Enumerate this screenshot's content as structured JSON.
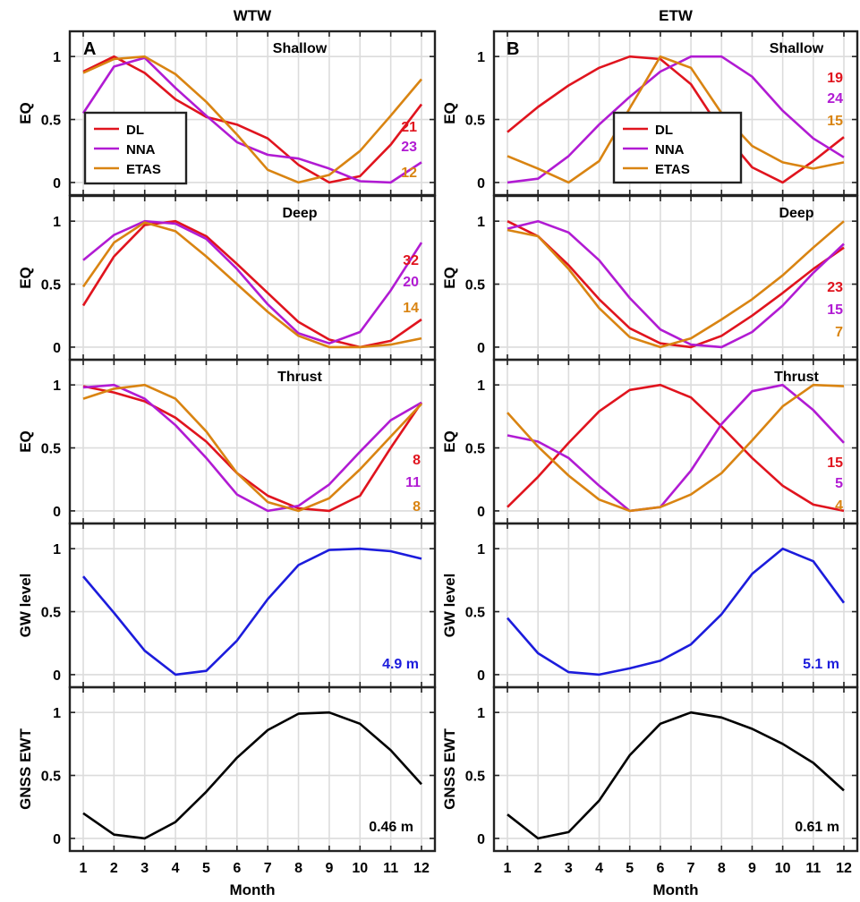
{
  "column_titles": [
    "WTW",
    "ETW"
  ],
  "panel_letters": [
    "A",
    "B"
  ],
  "colors": {
    "DL": "#e0141e",
    "NNA": "#b11bd3",
    "ETAS": "#d98412",
    "GW": "#1c1cdc",
    "GNSS": "#000000"
  },
  "legend": {
    "entries": [
      "DL",
      "NNA",
      "ETAS"
    ],
    "placement": [
      "lower-left",
      "lower-center"
    ]
  },
  "chart_data": [
    {
      "type": "line",
      "column": "WTW",
      "row": 0,
      "title": "Shallow",
      "ylabel": "EQ",
      "x": [
        1,
        2,
        3,
        4,
        5,
        6,
        7,
        8,
        9,
        10,
        11,
        12
      ],
      "xlim": [
        1,
        12
      ],
      "ylim": [
        -0.1,
        1.2
      ],
      "yticks": [
        0,
        0.5,
        1
      ],
      "ytick_labels": [
        "0",
        "0.5",
        "1"
      ],
      "grid": true,
      "series": [
        {
          "name": "DL",
          "values": [
            0.88,
            1.0,
            0.87,
            0.66,
            0.52,
            0.46,
            0.35,
            0.14,
            0.0,
            0.05,
            0.3,
            0.62
          ],
          "annotation": "21"
        },
        {
          "name": "NNA",
          "values": [
            0.55,
            0.92,
            0.99,
            0.75,
            0.53,
            0.32,
            0.22,
            0.19,
            0.11,
            0.01,
            0.0,
            0.16
          ],
          "annotation": "23"
        },
        {
          "name": "ETAS",
          "values": [
            0.87,
            0.98,
            1.0,
            0.86,
            0.64,
            0.38,
            0.1,
            0.0,
            0.06,
            0.25,
            0.53,
            0.82
          ],
          "annotation": "12"
        }
      ]
    },
    {
      "type": "line",
      "column": "WTW",
      "row": 1,
      "title": "Deep",
      "ylabel": "EQ",
      "x": [
        1,
        2,
        3,
        4,
        5,
        6,
        7,
        8,
        9,
        10,
        11,
        12
      ],
      "xlim": [
        1,
        12
      ],
      "ylim": [
        -0.1,
        1.2
      ],
      "yticks": [
        0,
        0.5,
        1
      ],
      "ytick_labels": [
        "0",
        "0.5",
        "1"
      ],
      "grid": true,
      "series": [
        {
          "name": "DL",
          "values": [
            0.33,
            0.72,
            0.97,
            1.0,
            0.88,
            0.66,
            0.43,
            0.2,
            0.06,
            0.0,
            0.05,
            0.22
          ],
          "annotation": "32"
        },
        {
          "name": "NNA",
          "values": [
            0.69,
            0.89,
            1.0,
            0.98,
            0.86,
            0.62,
            0.34,
            0.11,
            0.03,
            0.12,
            0.45,
            0.83
          ],
          "annotation": "20"
        },
        {
          "name": "ETAS",
          "values": [
            0.48,
            0.83,
            0.99,
            0.92,
            0.72,
            0.5,
            0.28,
            0.09,
            0.0,
            0.0,
            0.02,
            0.07
          ],
          "annotation": "14"
        }
      ]
    },
    {
      "type": "line",
      "column": "WTW",
      "row": 2,
      "title": "Thrust",
      "ylabel": "EQ",
      "x": [
        1,
        2,
        3,
        4,
        5,
        6,
        7,
        8,
        9,
        10,
        11,
        12
      ],
      "xlim": [
        1,
        12
      ],
      "ylim": [
        -0.1,
        1.2
      ],
      "yticks": [
        0,
        0.5,
        1
      ],
      "ytick_labels": [
        "0",
        "0.5",
        "1"
      ],
      "grid": true,
      "series": [
        {
          "name": "DL",
          "values": [
            0.99,
            0.94,
            0.87,
            0.74,
            0.55,
            0.3,
            0.12,
            0.02,
            0.0,
            0.12,
            0.5,
            0.86
          ],
          "annotation": "8"
        },
        {
          "name": "NNA",
          "values": [
            0.98,
            1.0,
            0.89,
            0.68,
            0.42,
            0.13,
            0.0,
            0.04,
            0.21,
            0.47,
            0.72,
            0.86
          ],
          "annotation": "11"
        },
        {
          "name": "ETAS",
          "values": [
            0.89,
            0.97,
            1.0,
            0.89,
            0.63,
            0.3,
            0.07,
            0.0,
            0.1,
            0.33,
            0.59,
            0.85
          ],
          "annotation": "8"
        }
      ]
    },
    {
      "type": "line",
      "column": "WTW",
      "row": 3,
      "title": "",
      "ylabel": "GW level",
      "x": [
        1,
        2,
        3,
        4,
        5,
        6,
        7,
        8,
        9,
        10,
        11,
        12
      ],
      "xlim": [
        1,
        12
      ],
      "ylim": [
        -0.1,
        1.2
      ],
      "yticks": [
        0,
        0.5,
        1
      ],
      "ytick_labels": [
        "0",
        "0.5",
        "1"
      ],
      "grid": true,
      "series": [
        {
          "name": "GW",
          "values": [
            0.78,
            0.49,
            0.19,
            0.0,
            0.03,
            0.27,
            0.6,
            0.87,
            0.99,
            1.0,
            0.98,
            0.92
          ]
        }
      ],
      "annotation": "4.9 m"
    },
    {
      "type": "line",
      "column": "WTW",
      "row": 4,
      "title": "",
      "ylabel": "GNSS EWT",
      "x": [
        1,
        2,
        3,
        4,
        5,
        6,
        7,
        8,
        9,
        10,
        11,
        12
      ],
      "xlim": [
        1,
        12
      ],
      "ylim": [
        -0.1,
        1.2
      ],
      "yticks": [
        0,
        0.5,
        1
      ],
      "ytick_labels": [
        "0",
        "0.5",
        "1"
      ],
      "grid": true,
      "xticks": [
        1,
        2,
        3,
        4,
        5,
        6,
        7,
        8,
        9,
        10,
        11,
        12
      ],
      "xlabel": "Month",
      "series": [
        {
          "name": "GNSS",
          "values": [
            0.2,
            0.03,
            0.0,
            0.13,
            0.37,
            0.64,
            0.86,
            0.99,
            1.0,
            0.91,
            0.7,
            0.43
          ]
        }
      ],
      "annotation": "0.46 m"
    },
    {
      "type": "line",
      "column": "ETW",
      "row": 0,
      "title": "Shallow",
      "ylabel": "EQ",
      "x": [
        1,
        2,
        3,
        4,
        5,
        6,
        7,
        8,
        9,
        10,
        11,
        12
      ],
      "xlim": [
        1,
        12
      ],
      "ylim": [
        -0.1,
        1.2
      ],
      "yticks": [
        0,
        0.5,
        1
      ],
      "ytick_labels": [
        "0",
        "0.5",
        "1"
      ],
      "grid": true,
      "series": [
        {
          "name": "DL",
          "values": [
            0.4,
            0.6,
            0.77,
            0.91,
            1.0,
            0.98,
            0.78,
            0.41,
            0.12,
            0.0,
            0.17,
            0.36
          ],
          "annotation": "19"
        },
        {
          "name": "NNA",
          "values": [
            0.0,
            0.03,
            0.21,
            0.46,
            0.68,
            0.88,
            1.0,
            1.0,
            0.84,
            0.57,
            0.35,
            0.2
          ],
          "annotation": "24"
        },
        {
          "name": "ETAS",
          "values": [
            0.21,
            0.11,
            0.0,
            0.17,
            0.59,
            1.0,
            0.91,
            0.55,
            0.29,
            0.16,
            0.11,
            0.16
          ],
          "annotation": "15"
        }
      ]
    },
    {
      "type": "line",
      "column": "ETW",
      "row": 1,
      "title": "Deep",
      "ylabel": "EQ",
      "x": [
        1,
        2,
        3,
        4,
        5,
        6,
        7,
        8,
        9,
        10,
        11,
        12
      ],
      "xlim": [
        1,
        12
      ],
      "ylim": [
        -0.1,
        1.2
      ],
      "yticks": [
        0,
        0.5,
        1
      ],
      "ytick_labels": [
        "0",
        "0.5",
        "1"
      ],
      "grid": true,
      "series": [
        {
          "name": "DL",
          "values": [
            1.0,
            0.88,
            0.65,
            0.38,
            0.15,
            0.03,
            0.0,
            0.09,
            0.25,
            0.43,
            0.62,
            0.79
          ],
          "annotation": "23"
        },
        {
          "name": "NNA",
          "values": [
            0.94,
            1.0,
            0.91,
            0.69,
            0.39,
            0.14,
            0.02,
            0.0,
            0.12,
            0.33,
            0.59,
            0.82
          ],
          "annotation": "15"
        },
        {
          "name": "ETAS",
          "values": [
            0.93,
            0.88,
            0.62,
            0.31,
            0.08,
            0.0,
            0.07,
            0.22,
            0.38,
            0.57,
            0.79,
            1.0
          ],
          "annotation": "7"
        }
      ]
    },
    {
      "type": "line",
      "column": "ETW",
      "row": 2,
      "title": "Thrust",
      "ylabel": "EQ",
      "x": [
        1,
        2,
        3,
        4,
        5,
        6,
        7,
        8,
        9,
        10,
        11,
        12
      ],
      "xlim": [
        1,
        12
      ],
      "ylim": [
        -0.1,
        1.2
      ],
      "yticks": [
        0,
        0.5,
        1
      ],
      "ytick_labels": [
        "0",
        "0.5",
        "1"
      ],
      "grid": true,
      "series": [
        {
          "name": "DL",
          "values": [
            0.03,
            0.27,
            0.54,
            0.79,
            0.96,
            1.0,
            0.9,
            0.67,
            0.42,
            0.2,
            0.05,
            0.0
          ],
          "annotation": "15"
        },
        {
          "name": "NNA",
          "values": [
            0.6,
            0.55,
            0.42,
            0.2,
            0.0,
            0.03,
            0.32,
            0.69,
            0.95,
            1.0,
            0.8,
            0.54
          ],
          "annotation": "5"
        },
        {
          "name": "ETAS",
          "values": [
            0.78,
            0.51,
            0.28,
            0.09,
            0.0,
            0.03,
            0.13,
            0.3,
            0.56,
            0.83,
            1.0,
            0.99
          ],
          "annotation": "4"
        }
      ]
    },
    {
      "type": "line",
      "column": "ETW",
      "row": 3,
      "title": "",
      "ylabel": "GW level",
      "x": [
        1,
        2,
        3,
        4,
        5,
        6,
        7,
        8,
        9,
        10,
        11,
        12
      ],
      "xlim": [
        1,
        12
      ],
      "ylim": [
        -0.1,
        1.2
      ],
      "yticks": [
        0,
        0.5,
        1
      ],
      "ytick_labels": [
        "0",
        "0.5",
        "1"
      ],
      "grid": true,
      "series": [
        {
          "name": "GW",
          "values": [
            0.45,
            0.17,
            0.02,
            0.0,
            0.05,
            0.11,
            0.24,
            0.48,
            0.8,
            1.0,
            0.9,
            0.57
          ]
        }
      ],
      "annotation": "5.1 m"
    },
    {
      "type": "line",
      "column": "ETW",
      "row": 4,
      "title": "",
      "ylabel": "GNSS EWT",
      "x": [
        1,
        2,
        3,
        4,
        5,
        6,
        7,
        8,
        9,
        10,
        11,
        12
      ],
      "xlim": [
        1,
        12
      ],
      "ylim": [
        -0.1,
        1.2
      ],
      "yticks": [
        0,
        0.5,
        1
      ],
      "ytick_labels": [
        "0",
        "0.5",
        "1"
      ],
      "grid": true,
      "xticks": [
        1,
        2,
        3,
        4,
        5,
        6,
        7,
        8,
        9,
        10,
        11,
        12
      ],
      "xlabel": "Month",
      "series": [
        {
          "name": "GNSS",
          "values": [
            0.19,
            0.0,
            0.05,
            0.3,
            0.66,
            0.91,
            1.0,
            0.96,
            0.87,
            0.75,
            0.6,
            0.38
          ]
        }
      ],
      "annotation": "0.61 m"
    }
  ]
}
